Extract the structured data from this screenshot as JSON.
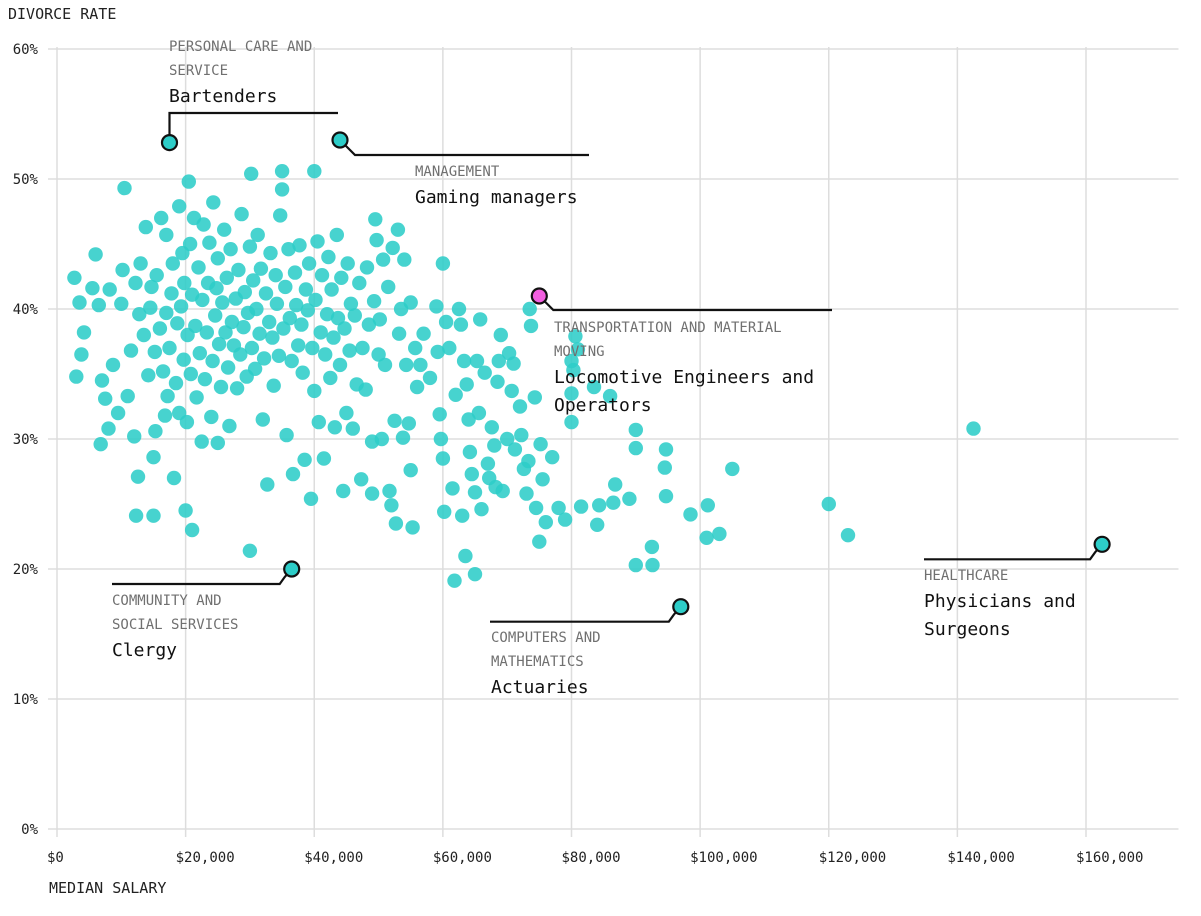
{
  "chart_data": {
    "type": "scatter",
    "title": "",
    "xlabel": "MEDIAN SALARY",
    "ylabel": "DIVORCE RATE",
    "xlim": [
      0,
      175000
    ],
    "ylim": [
      0,
      60
    ],
    "x_ticks": [
      0,
      20000,
      40000,
      60000,
      80000,
      100000,
      120000,
      140000,
      160000
    ],
    "x_tick_labels": [
      "$0",
      "$20,000",
      "$40,000",
      "$60,000",
      "$80,000",
      "$100,000",
      "$120,000",
      "$140,000",
      "$160,000"
    ],
    "y_ticks": [
      0,
      10,
      20,
      30,
      40,
      50,
      60
    ],
    "y_tick_labels": [
      "0%",
      "10%",
      "20%",
      "30%",
      "40%",
      "50%",
      "60%"
    ],
    "grid": true,
    "colors": {
      "point": "#2dcdc8",
      "highlight_point": "#2dcdc8",
      "highlight_special": "#f25fe0",
      "leader": "#111111",
      "category_text": "#707070",
      "name_text": "#111111",
      "grid": "#dddddd"
    },
    "highlights": [
      {
        "category_lines": [
          "PERSONAL CARE AND",
          "SERVICE"
        ],
        "name_lines": [
          "Bartenders"
        ],
        "x": 17500,
        "y": 52.8,
        "color": "#2dcdc8"
      },
      {
        "category_lines": [
          "MANAGEMENT"
        ],
        "name_lines": [
          "Gaming managers"
        ],
        "x": 44000,
        "y": 53.0,
        "color": "#2dcdc8"
      },
      {
        "category_lines": [
          "TRANSPORTATION AND MATERIAL",
          "MOVING"
        ],
        "name_lines": [
          "Locomotive Engineers and",
          "Operators"
        ],
        "x": 75000,
        "y": 41.0,
        "color": "#f25fe0"
      },
      {
        "category_lines": [
          "COMMUNITY AND",
          "SOCIAL SERVICES"
        ],
        "name_lines": [
          "Clergy"
        ],
        "x": 36500,
        "y": 20.0,
        "color": "#2dcdc8"
      },
      {
        "category_lines": [
          "COMPUTERS AND",
          "MATHEMATICS"
        ],
        "name_lines": [
          "Actuaries"
        ],
        "x": 97000,
        "y": 17.1,
        "color": "#2dcdc8"
      },
      {
        "category_lines": [
          "HEALTHCARE"
        ],
        "name_lines": [
          "Physicians and",
          "Surgeons"
        ],
        "x": 162500,
        "y": 21.9,
        "color": "#2dcdc8"
      }
    ],
    "points": [
      [
        2700,
        42.4
      ],
      [
        3500,
        40.5
      ],
      [
        4200,
        38.2
      ],
      [
        3000,
        34.8
      ],
      [
        3800,
        36.5
      ],
      [
        5500,
        41.6
      ],
      [
        6000,
        44.2
      ],
      [
        6500,
        40.3
      ],
      [
        7000,
        34.5
      ],
      [
        7500,
        33.1
      ],
      [
        6800,
        29.6
      ],
      [
        8000,
        30.8
      ],
      [
        8200,
        41.5
      ],
      [
        8700,
        35.7
      ],
      [
        9500,
        32.0
      ],
      [
        10000,
        40.4
      ],
      [
        10200,
        43.0
      ],
      [
        10500,
        49.3
      ],
      [
        11000,
        33.3
      ],
      [
        11500,
        36.8
      ],
      [
        12000,
        30.2
      ],
      [
        12300,
        24.1
      ],
      [
        12600,
        27.1
      ],
      [
        12200,
        42.0
      ],
      [
        12800,
        39.6
      ],
      [
        13000,
        43.5
      ],
      [
        13500,
        38.0
      ],
      [
        13800,
        46.3
      ],
      [
        14200,
        34.9
      ],
      [
        14500,
        40.1
      ],
      [
        14700,
        41.7
      ],
      [
        15000,
        24.1
      ],
      [
        15000,
        28.6
      ],
      [
        15200,
        36.7
      ],
      [
        15300,
        30.6
      ],
      [
        15500,
        42.6
      ],
      [
        16000,
        38.5
      ],
      [
        16200,
        47.0
      ],
      [
        16500,
        35.2
      ],
      [
        16800,
        31.8
      ],
      [
        17000,
        45.7
      ],
      [
        17000,
        39.7
      ],
      [
        17200,
        33.3
      ],
      [
        17500,
        37.0
      ],
      [
        17800,
        41.2
      ],
      [
        18000,
        43.5
      ],
      [
        18200,
        27.0
      ],
      [
        18500,
        34.3
      ],
      [
        18700,
        38.9
      ],
      [
        19000,
        32.0
      ],
      [
        19000,
        47.9
      ],
      [
        19300,
        40.2
      ],
      [
        19500,
        44.3
      ],
      [
        19700,
        36.1
      ],
      [
        19800,
        42.0
      ],
      [
        20000,
        24.5
      ],
      [
        20200,
        31.3
      ],
      [
        20300,
        38.0
      ],
      [
        20500,
        49.8
      ],
      [
        20700,
        45.0
      ],
      [
        20800,
        35.0
      ],
      [
        21000,
        23.0
      ],
      [
        21000,
        41.1
      ],
      [
        21300,
        47.0
      ],
      [
        21500,
        38.7
      ],
      [
        21700,
        33.2
      ],
      [
        22000,
        43.2
      ],
      [
        22200,
        36.6
      ],
      [
        22500,
        29.8
      ],
      [
        22600,
        40.7
      ],
      [
        22800,
        46.5
      ],
      [
        23000,
        34.6
      ],
      [
        23300,
        38.2
      ],
      [
        23500,
        42.0
      ],
      [
        23700,
        45.1
      ],
      [
        24000,
        31.7
      ],
      [
        24200,
        36.0
      ],
      [
        24300,
        48.2
      ],
      [
        24600,
        39.5
      ],
      [
        24800,
        41.6
      ],
      [
        25000,
        29.7
      ],
      [
        25000,
        43.9
      ],
      [
        25200,
        37.3
      ],
      [
        25500,
        34.0
      ],
      [
        25700,
        40.5
      ],
      [
        26000,
        46.1
      ],
      [
        26200,
        38.2
      ],
      [
        26400,
        42.4
      ],
      [
        26600,
        35.5
      ],
      [
        26800,
        31.0
      ],
      [
        27000,
        44.6
      ],
      [
        27200,
        39.0
      ],
      [
        27500,
        37.2
      ],
      [
        27800,
        40.8
      ],
      [
        28000,
        33.9
      ],
      [
        28200,
        43.0
      ],
      [
        28500,
        36.5
      ],
      [
        28700,
        47.3
      ],
      [
        29000,
        38.6
      ],
      [
        29200,
        41.3
      ],
      [
        29500,
        34.8
      ],
      [
        29700,
        39.7
      ],
      [
        30000,
        21.4
      ],
      [
        30000,
        44.8
      ],
      [
        30200,
        50.4
      ],
      [
        30300,
        37.0
      ],
      [
        30500,
        42.2
      ],
      [
        30800,
        35.4
      ],
      [
        31000,
        40.0
      ],
      [
        31200,
        45.7
      ],
      [
        31500,
        38.1
      ],
      [
        31700,
        43.1
      ],
      [
        32000,
        31.5
      ],
      [
        32200,
        36.2
      ],
      [
        32500,
        41.2
      ],
      [
        32700,
        26.5
      ],
      [
        33000,
        39.0
      ],
      [
        33200,
        44.3
      ],
      [
        33500,
        37.8
      ],
      [
        33700,
        34.1
      ],
      [
        34000,
        42.6
      ],
      [
        34200,
        40.4
      ],
      [
        34500,
        36.4
      ],
      [
        34700,
        47.2
      ],
      [
        35000,
        50.6
      ],
      [
        35000,
        49.2
      ],
      [
        35200,
        38.5
      ],
      [
        35500,
        41.7
      ],
      [
        35700,
        30.3
      ],
      [
        36000,
        44.6
      ],
      [
        36200,
        39.3
      ],
      [
        36500,
        36.0
      ],
      [
        36700,
        27.3
      ],
      [
        37000,
        42.8
      ],
      [
        37200,
        40.3
      ],
      [
        37500,
        37.2
      ],
      [
        37700,
        44.9
      ],
      [
        38000,
        38.8
      ],
      [
        38200,
        35.1
      ],
      [
        38500,
        28.4
      ],
      [
        38700,
        41.5
      ],
      [
        39000,
        39.9
      ],
      [
        39200,
        43.5
      ],
      [
        39500,
        25.4
      ],
      [
        39700,
        37.0
      ],
      [
        40000,
        50.6
      ],
      [
        40000,
        33.7
      ],
      [
        40200,
        40.7
      ],
      [
        40500,
        45.2
      ],
      [
        40700,
        31.3
      ],
      [
        41000,
        38.2
      ],
      [
        41200,
        42.6
      ],
      [
        41500,
        28.5
      ],
      [
        41700,
        36.5
      ],
      [
        42000,
        39.6
      ],
      [
        42200,
        44.0
      ],
      [
        42500,
        34.7
      ],
      [
        42700,
        41.5
      ],
      [
        43000,
        37.8
      ],
      [
        43200,
        30.9
      ],
      [
        43500,
        45.7
      ],
      [
        43700,
        39.3
      ],
      [
        44000,
        35.7
      ],
      [
        44200,
        42.4
      ],
      [
        44500,
        26.0
      ],
      [
        44700,
        38.5
      ],
      [
        45000,
        32.0
      ],
      [
        45200,
        43.5
      ],
      [
        45500,
        36.8
      ],
      [
        45700,
        40.4
      ],
      [
        46000,
        30.8
      ],
      [
        46300,
        39.5
      ],
      [
        46600,
        34.2
      ],
      [
        47000,
        42.0
      ],
      [
        47300,
        26.9
      ],
      [
        47500,
        37.0
      ],
      [
        48000,
        33.8
      ],
      [
        48200,
        43.2
      ],
      [
        48500,
        38.8
      ],
      [
        49000,
        25.8
      ],
      [
        49000,
        29.8
      ],
      [
        49300,
        40.6
      ],
      [
        49500,
        46.9
      ],
      [
        49700,
        45.3
      ],
      [
        50000,
        36.5
      ],
      [
        50200,
        39.2
      ],
      [
        50500,
        30.0
      ],
      [
        50700,
        43.8
      ],
      [
        51000,
        35.7
      ],
      [
        51500,
        41.7
      ],
      [
        51700,
        26.0
      ],
      [
        52000,
        24.9
      ],
      [
        52200,
        44.7
      ],
      [
        52500,
        31.4
      ],
      [
        52700,
        23.5
      ],
      [
        53000,
        46.1
      ],
      [
        53200,
        38.1
      ],
      [
        53500,
        40.0
      ],
      [
        53800,
        30.1
      ],
      [
        54000,
        43.8
      ],
      [
        54300,
        35.7
      ],
      [
        54700,
        31.2
      ],
      [
        55000,
        40.5
      ],
      [
        55000,
        27.6
      ],
      [
        55300,
        23.2
      ],
      [
        55700,
        37.0
      ],
      [
        56000,
        34.0
      ],
      [
        56500,
        35.7
      ],
      [
        57000,
        38.1
      ],
      [
        58000,
        34.7
      ],
      [
        59000,
        40.2
      ],
      [
        59200,
        36.7
      ],
      [
        59500,
        31.9
      ],
      [
        59700,
        30.0
      ],
      [
        60000,
        43.5
      ],
      [
        60000,
        28.5
      ],
      [
        60200,
        24.4
      ],
      [
        60500,
        39.0
      ],
      [
        61000,
        37.0
      ],
      [
        61500,
        26.2
      ],
      [
        61800,
        19.1
      ],
      [
        62000,
        33.4
      ],
      [
        62500,
        40.0
      ],
      [
        62800,
        38.8
      ],
      [
        63000,
        24.1
      ],
      [
        63300,
        36.0
      ],
      [
        63500,
        21.0
      ],
      [
        63700,
        34.2
      ],
      [
        64000,
        31.5
      ],
      [
        64200,
        29.0
      ],
      [
        64500,
        27.3
      ],
      [
        65000,
        25.9
      ],
      [
        65000,
        19.6
      ],
      [
        65300,
        36.0
      ],
      [
        65600,
        32.0
      ],
      [
        65800,
        39.2
      ],
      [
        66000,
        24.6
      ],
      [
        66500,
        35.1
      ],
      [
        67000,
        28.1
      ],
      [
        67200,
        27.0
      ],
      [
        67600,
        30.9
      ],
      [
        68000,
        29.5
      ],
      [
        68200,
        26.3
      ],
      [
        68500,
        34.4
      ],
      [
        68700,
        36.0
      ],
      [
        69000,
        38.0
      ],
      [
        69300,
        26.0
      ],
      [
        70000,
        30.0
      ],
      [
        70300,
        36.6
      ],
      [
        70700,
        33.7
      ],
      [
        71000,
        35.8
      ],
      [
        71200,
        29.2
      ],
      [
        72000,
        32.5
      ],
      [
        72200,
        30.3
      ],
      [
        72600,
        27.7
      ],
      [
        73000,
        25.8
      ],
      [
        73300,
        28.3
      ],
      [
        73500,
        40.0
      ],
      [
        73700,
        38.7
      ],
      [
        74300,
        33.2
      ],
      [
        74500,
        24.7
      ],
      [
        75000,
        22.1
      ],
      [
        75200,
        29.6
      ],
      [
        75500,
        26.9
      ],
      [
        76000,
        23.6
      ],
      [
        77000,
        28.6
      ],
      [
        78000,
        24.7
      ],
      [
        79000,
        23.8
      ],
      [
        80000,
        36.0
      ],
      [
        80000,
        33.5
      ],
      [
        80000,
        31.3
      ],
      [
        80300,
        35.3
      ],
      [
        80600,
        37.9
      ],
      [
        81000,
        36.9
      ],
      [
        81500,
        24.8
      ],
      [
        83500,
        34.0
      ],
      [
        84000,
        23.4
      ],
      [
        84300,
        24.9
      ],
      [
        86000,
        33.3
      ],
      [
        86500,
        25.1
      ],
      [
        86800,
        26.5
      ],
      [
        89000,
        25.4
      ],
      [
        90000,
        30.7
      ],
      [
        90000,
        29.3
      ],
      [
        90000,
        20.3
      ],
      [
        92500,
        21.7
      ],
      [
        92600,
        20.3
      ],
      [
        94500,
        27.8
      ],
      [
        94700,
        29.2
      ],
      [
        94700,
        25.6
      ],
      [
        98500,
        24.2
      ],
      [
        101000,
        22.4
      ],
      [
        101200,
        24.9
      ],
      [
        103000,
        22.7
      ],
      [
        105000,
        27.7
      ],
      [
        120000,
        25.0
      ],
      [
        123000,
        22.6
      ],
      [
        142500,
        30.8
      ]
    ]
  }
}
